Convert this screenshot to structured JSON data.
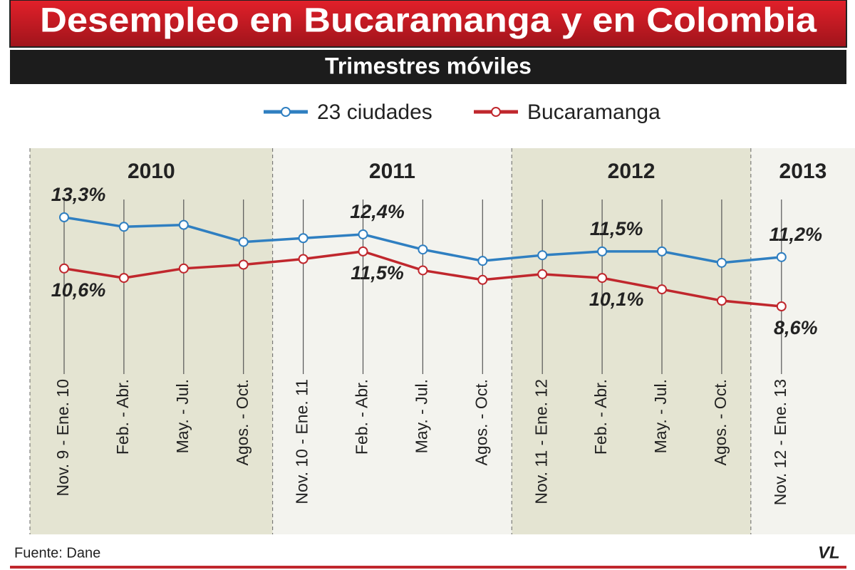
{
  "chart_data": {
    "type": "line",
    "title": "Desempleo en Bucaramanga y en Colombia",
    "subtitle": "Trimestres móviles",
    "categories": [
      "Nov. 9 - Ene. 10",
      "Feb. - Abr.",
      "May. - Jul.",
      "Agos. - Oct.",
      "Nov. 10 - Ene. 11",
      "Feb. - Abr.",
      "May. - Jul.",
      "Agos. - Oct.",
      "Nov. 11 - Ene. 12",
      "Feb. - Abr.",
      "May. - Jul.",
      "Agos. - Oct.",
      "Nov. 12 - Ene. 13"
    ],
    "periods": [
      "2010",
      "2011",
      "2012",
      "2013"
    ],
    "series": [
      {
        "name": "23 ciudades",
        "color": "#2f7fc1",
        "values": [
          13.3,
          12.8,
          12.9,
          12.0,
          12.2,
          12.4,
          11.6,
          11.0,
          11.3,
          11.5,
          11.5,
          10.9,
          11.2
        ],
        "value_labels": [
          "13,3%",
          null,
          null,
          null,
          null,
          "12,4%",
          null,
          null,
          null,
          "11,5%",
          null,
          null,
          "11,2%"
        ]
      },
      {
        "name": "Bucaramanga",
        "color": "#c0272d",
        "values": [
          10.6,
          10.1,
          10.6,
          10.8,
          11.1,
          11.5,
          10.5,
          10.0,
          10.3,
          10.1,
          9.5,
          8.9,
          8.6
        ],
        "value_labels": [
          "10,6%",
          null,
          null,
          null,
          null,
          "11,5%",
          null,
          null,
          null,
          "10,1%",
          null,
          null,
          "8,6%"
        ]
      }
    ],
    "source": "Fuente: Dane",
    "logo": "VL"
  }
}
